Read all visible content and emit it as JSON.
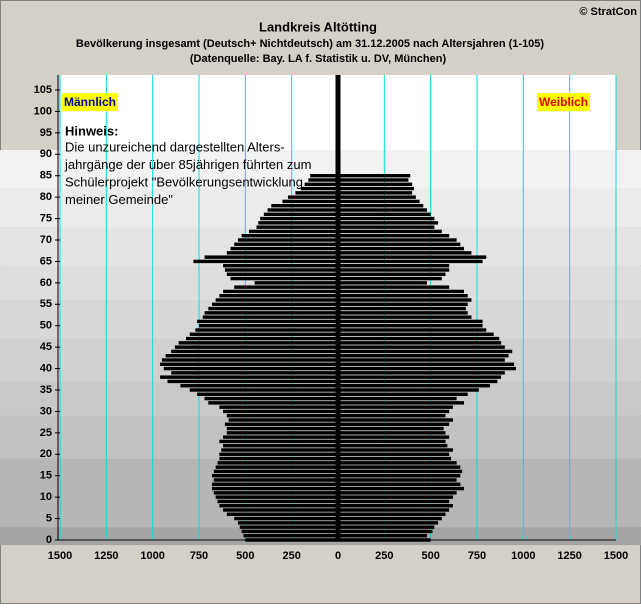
{
  "chart_data": {
    "type": "pyramid",
    "title": "Landkreis Altötting",
    "subtitle": "Bevölkerung  insgesamt (Deutsch+ Nichtdeutsch) am 31.12.2005 nach Altersjahren (1-105)",
    "source": "(Datenquelle: Bay. LA f. Statistik u. DV, München)",
    "copyright": "© StratCon",
    "note_title": "Hinweis:",
    "note_lines": [
      "Die unzureichend dargestellten Alters-",
      "jahrgänge der über 85jährigen führten zum",
      "Schülerprojekt \"Bevölkerungsentwicklung",
      "meiner Gemeinde\""
    ],
    "y": [
      0,
      1,
      2,
      3,
      4,
      5,
      6,
      7,
      8,
      9,
      10,
      11,
      12,
      13,
      14,
      15,
      16,
      17,
      18,
      19,
      20,
      21,
      22,
      23,
      24,
      25,
      26,
      27,
      28,
      29,
      30,
      31,
      32,
      33,
      34,
      35,
      36,
      37,
      38,
      39,
      40,
      41,
      42,
      43,
      44,
      45,
      46,
      47,
      48,
      49,
      50,
      51,
      52,
      53,
      54,
      55,
      56,
      57,
      58,
      59,
      60,
      61,
      62,
      63,
      64,
      65,
      66,
      67,
      68,
      69,
      70,
      71,
      72,
      73,
      74,
      75,
      76,
      77,
      78,
      79,
      80,
      81,
      82,
      83,
      84,
      85
    ],
    "series": [
      {
        "name": "Männlich",
        "side": "left",
        "color": "#000000",
        "label_bg": "#ffff00",
        "label_color": "#0000a0",
        "values": [
          500,
          510,
          520,
          530,
          540,
          560,
          600,
          620,
          640,
          650,
          660,
          670,
          680,
          680,
          670,
          680,
          670,
          660,
          650,
          640,
          640,
          630,
          620,
          640,
          620,
          600,
          600,
          610,
          590,
          600,
          620,
          640,
          700,
          720,
          760,
          800,
          850,
          920,
          960,
          900,
          940,
          960,
          950,
          930,
          900,
          880,
          860,
          820,
          800,
          770,
          750,
          760,
          730,
          720,
          700,
          680,
          660,
          640,
          620,
          560,
          450,
          580,
          600,
          610,
          620,
          780,
          720,
          600,
          580,
          560,
          540,
          520,
          480,
          440,
          430,
          420,
          400,
          380,
          360,
          300,
          270,
          230,
          200,
          180,
          160,
          150
        ]
      },
      {
        "name": "Weiblich",
        "side": "right",
        "color": "#000000",
        "label_bg": "#ffff00",
        "label_color": "#e00000",
        "values": [
          500,
          480,
          510,
          520,
          540,
          560,
          580,
          600,
          620,
          600,
          620,
          640,
          680,
          660,
          640,
          660,
          670,
          660,
          640,
          610,
          600,
          620,
          590,
          580,
          600,
          580,
          570,
          600,
          620,
          580,
          600,
          620,
          680,
          640,
          700,
          760,
          820,
          860,
          880,
          900,
          960,
          950,
          900,
          920,
          940,
          900,
          880,
          870,
          840,
          800,
          780,
          780,
          720,
          700,
          690,
          700,
          720,
          700,
          680,
          600,
          480,
          560,
          580,
          600,
          600,
          780,
          800,
          720,
          680,
          660,
          640,
          600,
          560,
          520,
          540,
          520,
          500,
          480,
          460,
          440,
          420,
          400,
          410,
          400,
          380,
          390
        ]
      }
    ],
    "xlim": [
      -1500,
      1500
    ],
    "xticks": [
      {
        "value": -1500,
        "label": "1500"
      },
      {
        "value": -1250,
        "label": "1250"
      },
      {
        "value": -1000,
        "label": "1000"
      },
      {
        "value": -750,
        "label": "750"
      },
      {
        "value": -500,
        "label": "500"
      },
      {
        "value": -250,
        "label": "250"
      },
      0,
      250,
      500,
      750,
      1000,
      1250,
      1500
    ],
    "ylim": [
      0,
      105
    ],
    "yticks": [
      0,
      5,
      10,
      15,
      20,
      25,
      30,
      35,
      40,
      45,
      50,
      55,
      60,
      65,
      70,
      75,
      80,
      85,
      90,
      95,
      100,
      105
    ],
    "grid_color": "#00e0e0"
  }
}
